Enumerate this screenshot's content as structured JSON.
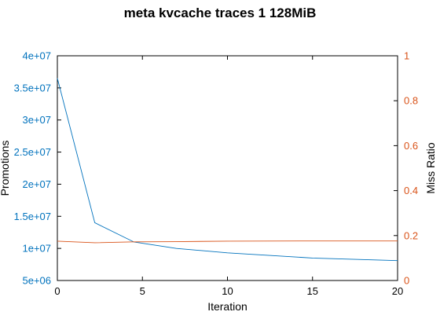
{
  "chart_data": {
    "type": "line",
    "title": "meta kvcache traces 1 128MiB",
    "xlabel": "Iteration",
    "ylabel_left": "Promotions",
    "ylabel_right": "Miss Ratio",
    "xlim": [
      0,
      20
    ],
    "ylim_left": [
      5000000,
      40000000
    ],
    "ylim_right": [
      0,
      1
    ],
    "x_ticks": [
      0,
      5,
      10,
      15,
      20
    ],
    "x_tick_labels": [
      "0",
      "5",
      "10",
      "15",
      "20"
    ],
    "y_left_ticks": [
      5000000,
      10000000,
      15000000,
      20000000,
      25000000,
      30000000,
      35000000,
      40000000
    ],
    "y_left_tick_labels": [
      "5e+06",
      "1e+07",
      "1.5e+07",
      "2e+07",
      "2.5e+07",
      "3e+07",
      "3.5e+07",
      "4e+07"
    ],
    "y_right_ticks": [
      0,
      0.2,
      0.4,
      0.6,
      0.8,
      1
    ],
    "y_right_tick_labels": [
      "0",
      "0.2",
      "0.4",
      "0.6",
      "0.8",
      "1"
    ],
    "grid": false,
    "colors": {
      "left_axis": "#0072bd",
      "right_axis": "#d95319",
      "promotions_line": "#0072bd",
      "miss_ratio_line": "#d95319"
    },
    "series": [
      {
        "axis": "left",
        "x": [
          0,
          2.2,
          4.5,
          7,
          10,
          15,
          20
        ],
        "values": [
          36500000,
          14000000,
          11000000,
          10000000,
          9300000,
          8500000,
          8100000
        ]
      },
      {
        "axis": "right",
        "x": [
          0,
          2.2,
          4.5,
          7,
          10,
          15,
          20
        ],
        "values": [
          0.175,
          0.168,
          0.172,
          0.173,
          0.175,
          0.176,
          0.176
        ]
      }
    ]
  }
}
